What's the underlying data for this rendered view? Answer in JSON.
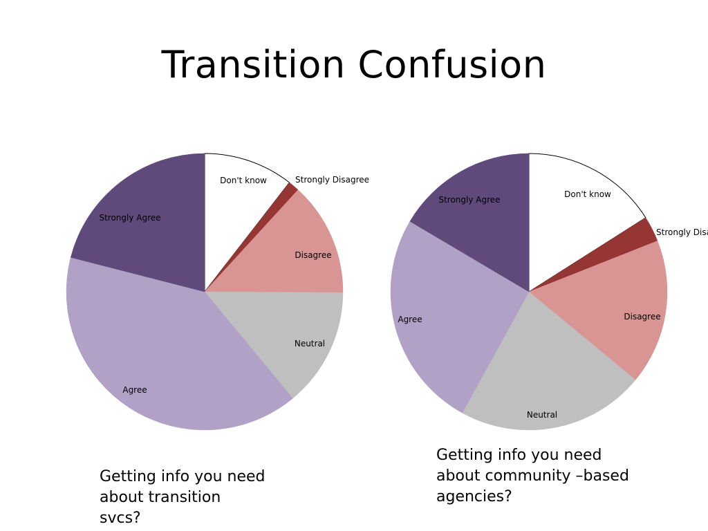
{
  "slide": {
    "title": "Transition Confusion"
  },
  "chart_data": [
    {
      "type": "pie",
      "title": "",
      "caption_lines": [
        "Getting info you need",
        "about transition",
        "svcs?"
      ],
      "slices": [
        {
          "label": "Don't know",
          "value": 10.5,
          "color": "#ffffff"
        },
        {
          "label": "Strongly Disagree",
          "value": 1.3,
          "color": "#963634"
        },
        {
          "label": "Disagree",
          "value": 13.3,
          "color": "#d99594"
        },
        {
          "label": "Neutral",
          "value": 13.9,
          "color": "#bfbfbf"
        },
        {
          "label": "Agree",
          "value": 40.0,
          "color": "#b2a1c7"
        },
        {
          "label": "Strongly Agree",
          "value": 21.0,
          "color": "#604a7b"
        }
      ]
    },
    {
      "type": "pie",
      "title": "",
      "caption_lines": [
        "Getting info you need",
        "about community –based",
        "agencies?"
      ],
      "slices": [
        {
          "label": "Don't know",
          "value": 16.0,
          "color": "#ffffff"
        },
        {
          "label": "Strongly Disagree",
          "value": 3.0,
          "color": "#963634"
        },
        {
          "label": "Disagree",
          "value": 17.0,
          "color": "#d99594"
        },
        {
          "label": "Neutral",
          "value": 22.0,
          "color": "#bfbfbf"
        },
        {
          "label": "Agree",
          "value": 25.5,
          "color": "#b2a1c7"
        },
        {
          "label": "Strongly Agree",
          "value": 16.5,
          "color": "#604a7b"
        }
      ]
    }
  ]
}
